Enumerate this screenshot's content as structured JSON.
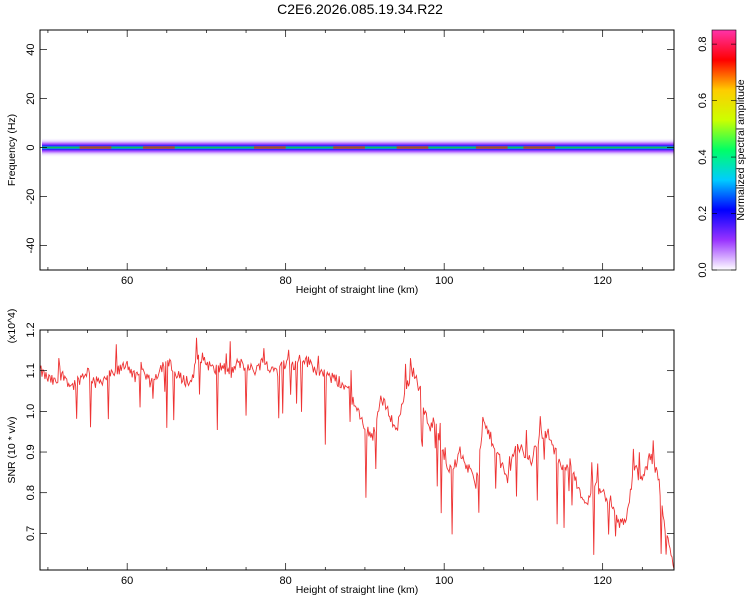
{
  "figure": {
    "title": "C2E6.2026.085.19.34.R22"
  },
  "chart_data": [
    {
      "type": "heatmap",
      "name": "spectrogram",
      "xlabel": "Height of straight line (km)",
      "ylabel": "Frequency (Hz)",
      "xlim": [
        49,
        129
      ],
      "ylim": [
        -50,
        48
      ],
      "xticks": [
        60,
        80,
        100,
        120
      ],
      "yticks": [
        40,
        20,
        0,
        -20,
        -40
      ],
      "xtick_labels": [
        "60",
        "80",
        "100",
        "120"
      ],
      "ytick_labels": [
        "40",
        "20",
        "0",
        "-20",
        "-40"
      ],
      "band_center_hz": 0,
      "band_halfwidth_hz": 4,
      "colorbar": {
        "label": "Normalized spectral amplitude",
        "range": [
          0,
          0.85
        ],
        "ticks": [
          0.0,
          0.2,
          0.4,
          0.6,
          0.8
        ],
        "tick_labels": [
          "0.0",
          "0.2",
          "0.4",
          "0.6",
          "0.8"
        ],
        "colors": [
          "#ffffff",
          "#9933ff",
          "#0000ff",
          "#00ccff",
          "#00ff66",
          "#ccff00",
          "#ffcc00",
          "#ff0000",
          "#ff33aa"
        ]
      }
    },
    {
      "type": "line",
      "name": "snr",
      "xlabel": "Height of straight line (km)",
      "ylabel": "SNR (10 * v/v)",
      "y_multiplier": "(x10^4)",
      "xlim": [
        49,
        129
      ],
      "ylim": [
        0.61,
        1.2
      ],
      "xticks": [
        60,
        80,
        100,
        120
      ],
      "yticks": [
        0.7,
        0.8,
        0.9,
        1.0,
        1.1,
        1.2
      ],
      "xtick_labels": [
        "60",
        "80",
        "100",
        "120"
      ],
      "ytick_labels": [
        "0.7",
        "0.8",
        "0.9",
        "1.0",
        "1.1",
        "1.2"
      ],
      "line_color": "#ee3333",
      "series": [
        {
          "name": "SNR",
          "x": [
            49,
            50,
            51,
            52,
            53,
            54,
            55,
            56,
            57,
            58,
            59,
            60,
            61,
            62,
            63,
            64,
            65,
            66,
            67,
            68,
            69,
            70,
            71,
            72,
            73,
            74,
            75,
            76,
            77,
            78,
            79,
            80,
            81,
            82,
            83,
            84,
            85,
            86,
            87,
            88,
            89,
            90,
            91,
            92,
            93,
            94,
            95,
            96,
            97,
            98,
            99,
            100,
            101,
            102,
            103,
            104,
            105,
            106,
            107,
            108,
            109,
            110,
            111,
            112,
            113,
            114,
            115,
            116,
            117,
            118,
            119,
            120,
            121,
            122,
            123,
            124,
            125,
            126,
            127,
            128,
            129
          ],
          "values": [
            1.1,
            1.08,
            1.07,
            1.09,
            1.06,
            1.08,
            1.1,
            1.07,
            1.08,
            1.09,
            1.1,
            1.12,
            1.08,
            1.09,
            1.07,
            1.1,
            1.13,
            1.09,
            1.08,
            1.07,
            1.14,
            1.12,
            1.1,
            1.11,
            1.09,
            1.12,
            1.11,
            1.1,
            1.12,
            1.11,
            1.1,
            1.12,
            1.11,
            1.13,
            1.12,
            1.1,
            1.09,
            1.08,
            1.07,
            1.05,
            1.0,
            0.96,
            0.94,
            1.03,
            1.0,
            0.95,
            1.05,
            1.1,
            1.05,
            0.96,
            0.98,
            0.88,
            0.85,
            0.9,
            0.86,
            0.82,
            0.97,
            0.93,
            0.88,
            0.83,
            0.92,
            0.9,
            0.88,
            0.94,
            0.95,
            0.9,
            0.86,
            0.88,
            0.8,
            0.78,
            0.82,
            0.8,
            0.78,
            0.72,
            0.74,
            0.86,
            0.83,
            0.89,
            0.84,
            0.7,
            0.61
          ]
        }
      ]
    }
  ]
}
